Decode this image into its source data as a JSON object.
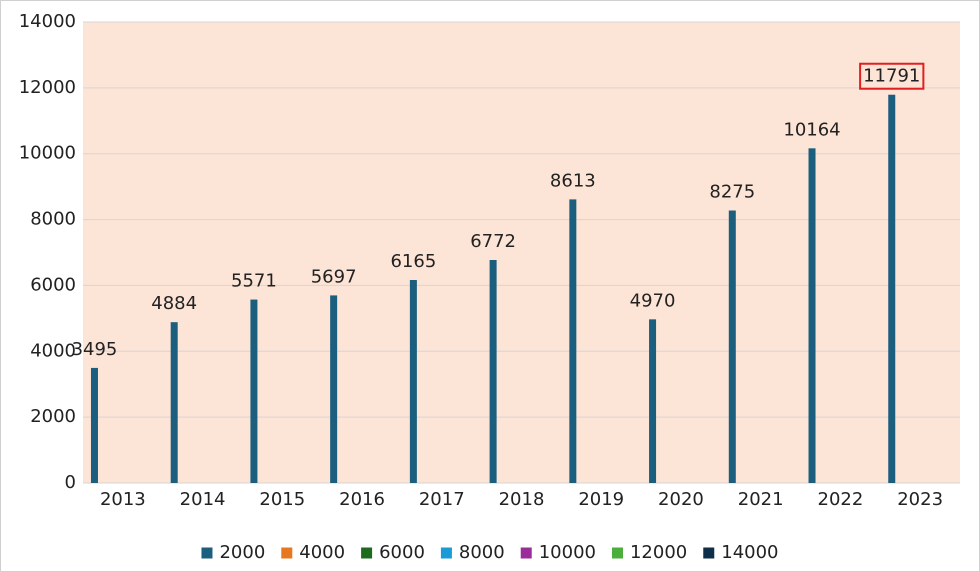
{
  "chart_data": {
    "type": "bar",
    "categories": [
      "2013",
      "2014",
      "2015",
      "2016",
      "2017",
      "2018",
      "2019",
      "2020",
      "2021",
      "2022",
      "2023"
    ],
    "series": [
      {
        "name": "2000",
        "color": "#1b5e7e",
        "values": [
          3495,
          4884,
          5571,
          5697,
          6165,
          6772,
          8613,
          4970,
          8275,
          10164,
          11791
        ]
      },
      {
        "name": "4000",
        "color": "#e87722",
        "values": [
          null,
          null,
          null,
          null,
          null,
          null,
          null,
          null,
          null,
          null,
          null
        ]
      },
      {
        "name": "6000",
        "color": "#1e6b1e",
        "values": [
          null,
          null,
          null,
          null,
          null,
          null,
          null,
          null,
          null,
          null,
          null
        ]
      },
      {
        "name": "8000",
        "color": "#1a9bd7",
        "values": [
          null,
          null,
          null,
          null,
          null,
          null,
          null,
          null,
          null,
          null,
          null
        ]
      },
      {
        "name": "10000",
        "color": "#9b2d9b",
        "values": [
          null,
          null,
          null,
          null,
          null,
          null,
          null,
          null,
          null,
          null,
          null
        ]
      },
      {
        "name": "12000",
        "color": "#4cae3c",
        "values": [
          null,
          null,
          null,
          null,
          null,
          null,
          null,
          null,
          null,
          null,
          null
        ]
      },
      {
        "name": "14000",
        "color": "#0d2f4a",
        "values": [
          null,
          null,
          null,
          null,
          null,
          null,
          null,
          null,
          null,
          null,
          null
        ]
      }
    ],
    "ylim": [
      0,
      14000
    ],
    "yticks": [
      0,
      2000,
      4000,
      6000,
      8000,
      10000,
      12000,
      14000
    ],
    "grid": true,
    "legend": "bottom",
    "plot_background": "#fce4d6"
  }
}
